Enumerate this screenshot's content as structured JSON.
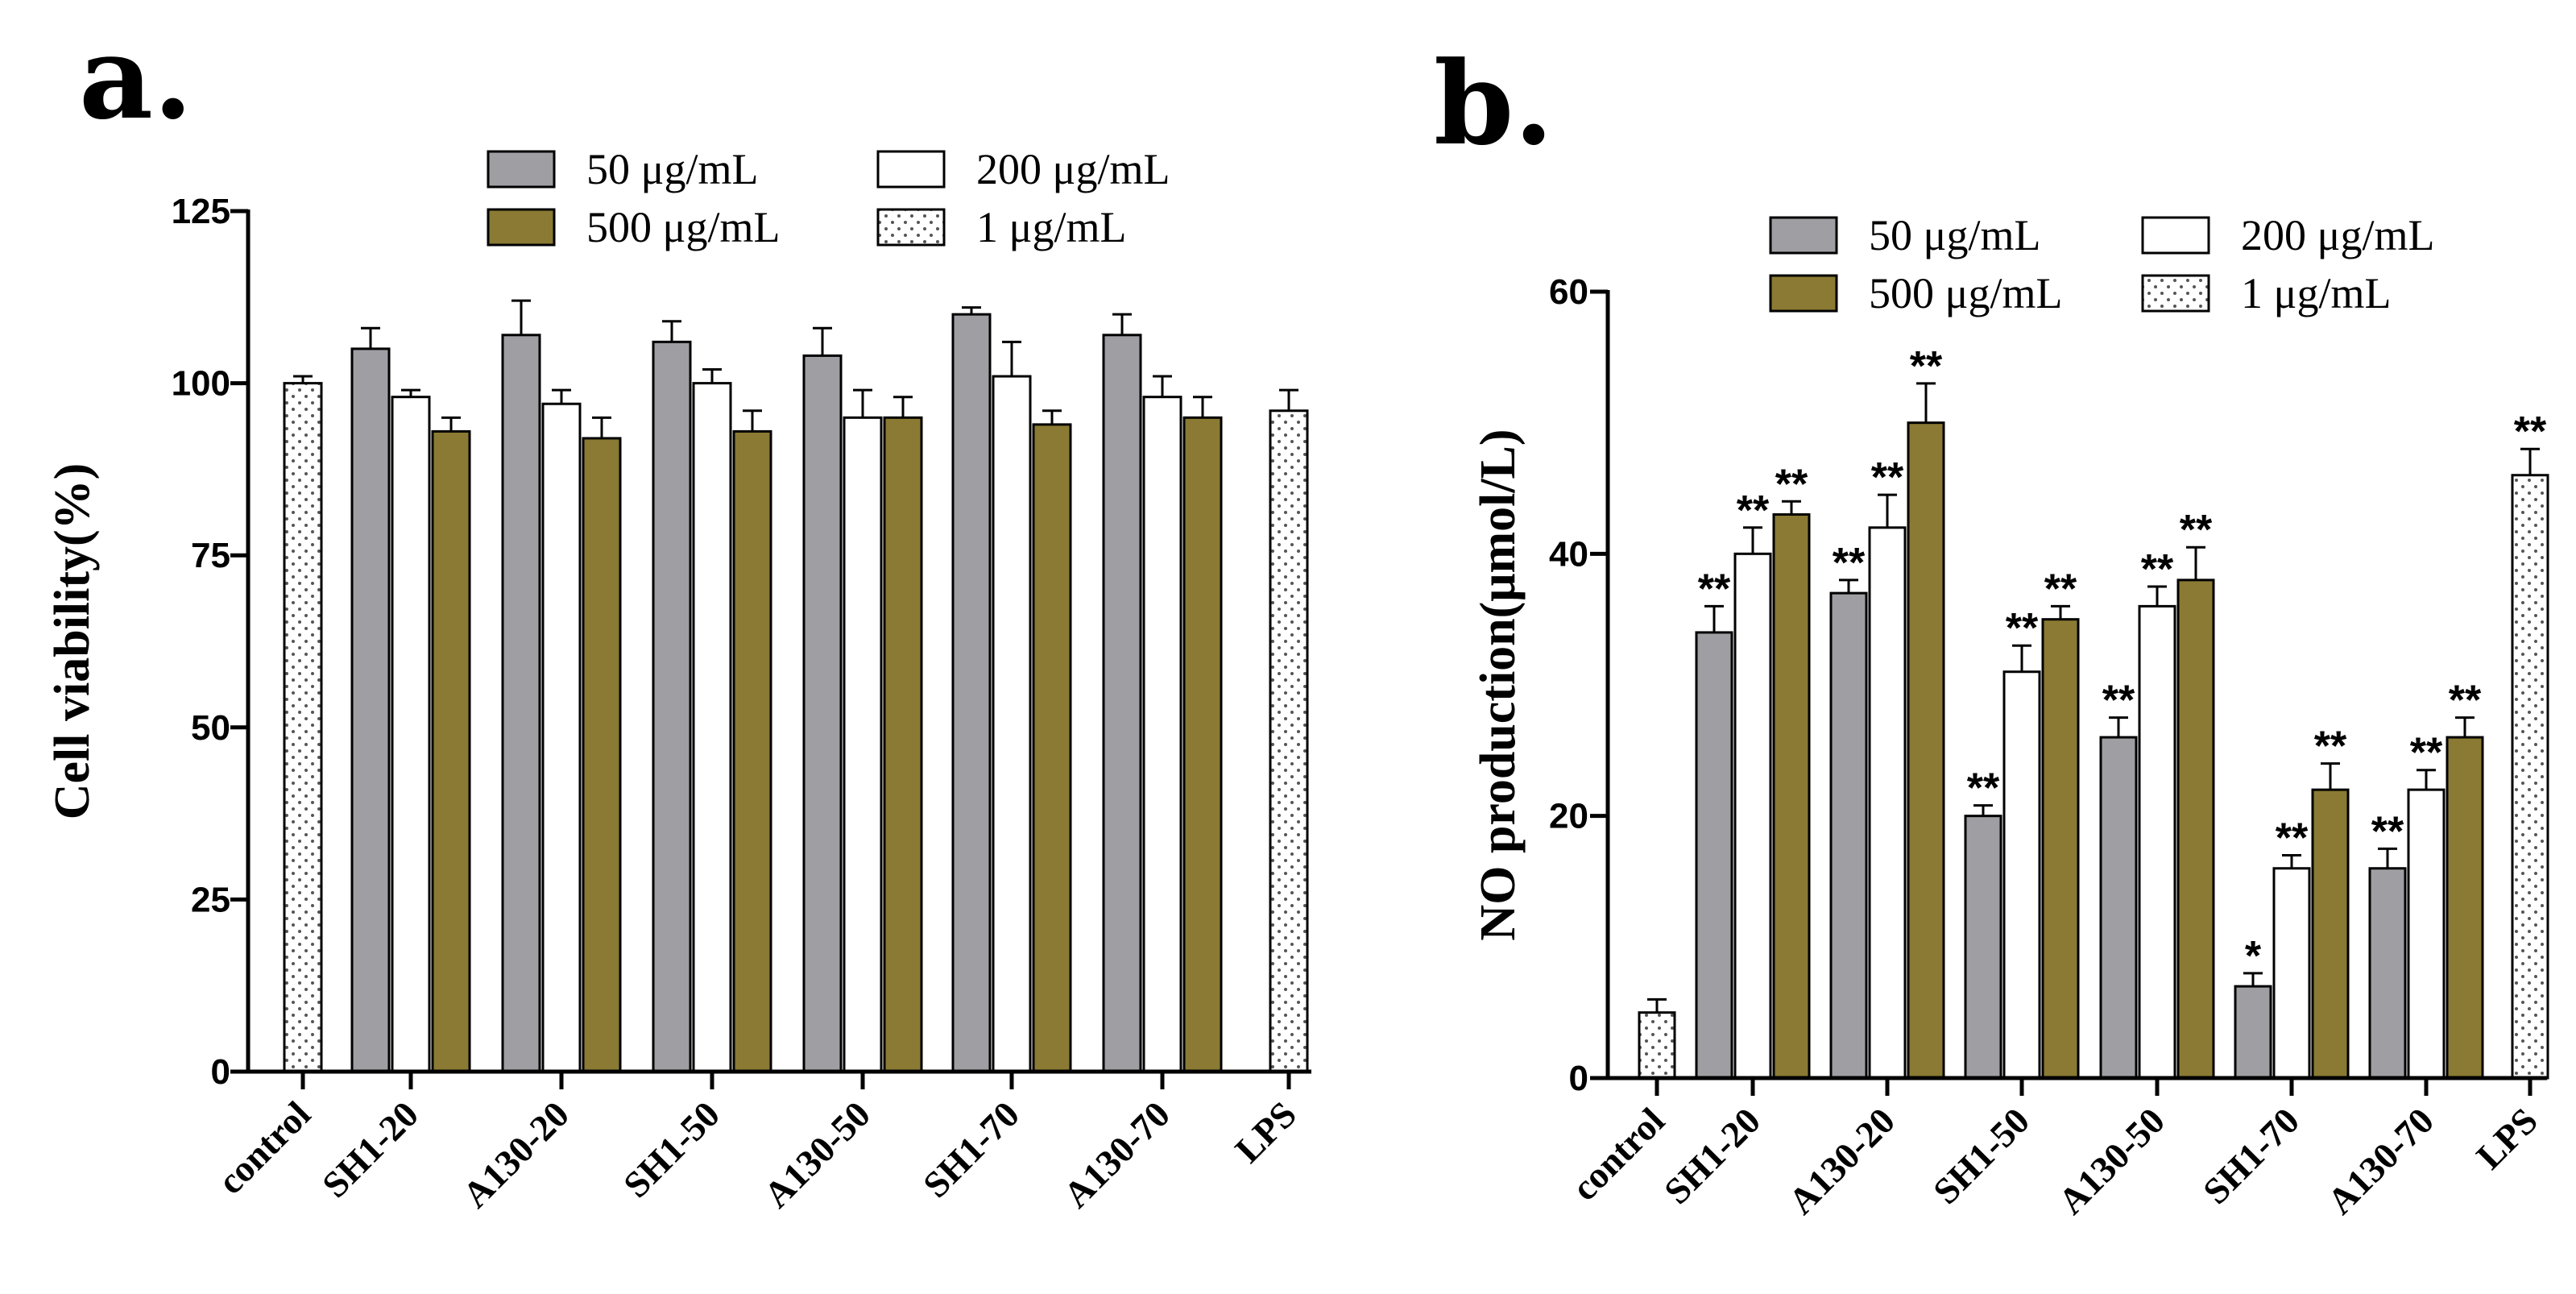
{
  "chart_data": [
    {
      "panel": "a.",
      "type": "bar",
      "ylabel": "Cell viability(%)",
      "xlabel": "",
      "ylim": [
        0,
        125
      ],
      "yticks": [
        0,
        25,
        50,
        75,
        100,
        125
      ],
      "legend_position": "top",
      "legend": [
        {
          "name": "50 μg/mL",
          "fill": "gray"
        },
        {
          "name": "200 μg/mL",
          "fill": "white"
        },
        {
          "name": "500 μg/mL",
          "fill": "olive"
        },
        {
          "name": "1 μg/mL",
          "fill": "dotted"
        }
      ],
      "groups": [
        {
          "category": "control",
          "bars": [
            {
              "series": "1 μg/mL",
              "value": 100,
              "err": 1
            }
          ]
        },
        {
          "category": "SH1-20",
          "bars": [
            {
              "series": "50 μg/mL",
              "value": 105,
              "err": 3
            },
            {
              "series": "200 μg/mL",
              "value": 98,
              "err": 1
            },
            {
              "series": "500 μg/mL",
              "value": 93,
              "err": 2
            }
          ]
        },
        {
          "category": "A130-20",
          "bars": [
            {
              "series": "50 μg/mL",
              "value": 107,
              "err": 5
            },
            {
              "series": "200 μg/mL",
              "value": 97,
              "err": 2
            },
            {
              "series": "500 μg/mL",
              "value": 92,
              "err": 3
            }
          ]
        },
        {
          "category": "SH1-50",
          "bars": [
            {
              "series": "50 μg/mL",
              "value": 106,
              "err": 3
            },
            {
              "series": "200 μg/mL",
              "value": 100,
              "err": 2
            },
            {
              "series": "500 μg/mL",
              "value": 93,
              "err": 3
            }
          ]
        },
        {
          "category": "A130-50",
          "bars": [
            {
              "series": "50 μg/mL",
              "value": 104,
              "err": 4
            },
            {
              "series": "200 μg/mL",
              "value": 95,
              "err": 4
            },
            {
              "series": "500 μg/mL",
              "value": 95,
              "err": 3
            }
          ]
        },
        {
          "category": "SH1-70",
          "bars": [
            {
              "series": "50 μg/mL",
              "value": 110,
              "err": 1
            },
            {
              "series": "200 μg/mL",
              "value": 101,
              "err": 5
            },
            {
              "series": "500 μg/mL",
              "value": 94,
              "err": 2
            }
          ]
        },
        {
          "category": "A130-70",
          "bars": [
            {
              "series": "50 μg/mL",
              "value": 107,
              "err": 3
            },
            {
              "series": "200 μg/mL",
              "value": 98,
              "err": 3
            },
            {
              "series": "500 μg/mL",
              "value": 95,
              "err": 3
            }
          ]
        },
        {
          "category": "LPS",
          "bars": [
            {
              "series": "1 μg/mL",
              "value": 96,
              "err": 3
            }
          ]
        }
      ]
    },
    {
      "panel": "b.",
      "type": "bar",
      "ylabel": "NO production(μmol/L)",
      "xlabel": "",
      "ylim": [
        0,
        60
      ],
      "yticks": [
        0,
        20,
        40,
        60
      ],
      "legend_position": "top",
      "legend": [
        {
          "name": "50 μg/mL",
          "fill": "gray"
        },
        {
          "name": "200 μg/mL",
          "fill": "white"
        },
        {
          "name": "500 μg/mL",
          "fill": "olive"
        },
        {
          "name": "1 μg/mL",
          "fill": "dotted"
        }
      ],
      "groups": [
        {
          "category": "control",
          "bars": [
            {
              "series": "1 μg/mL",
              "value": 5,
              "err": 1,
              "sig": ""
            }
          ]
        },
        {
          "category": "SH1-20",
          "bars": [
            {
              "series": "50 μg/mL",
              "value": 34,
              "err": 2,
              "sig": "**"
            },
            {
              "series": "200 μg/mL",
              "value": 40,
              "err": 2,
              "sig": "**"
            },
            {
              "series": "500 μg/mL",
              "value": 43,
              "err": 1,
              "sig": "**"
            }
          ]
        },
        {
          "category": "A130-20",
          "bars": [
            {
              "series": "50 μg/mL",
              "value": 37,
              "err": 1,
              "sig": "**"
            },
            {
              "series": "200 μg/mL",
              "value": 42,
              "err": 2.5,
              "sig": "**"
            },
            {
              "series": "500 μg/mL",
              "value": 50,
              "err": 3,
              "sig": "**"
            }
          ]
        },
        {
          "category": "SH1-50",
          "bars": [
            {
              "series": "50 μg/mL",
              "value": 20,
              "err": 0.8,
              "sig": "**"
            },
            {
              "series": "200 μg/mL",
              "value": 31,
              "err": 2,
              "sig": "**"
            },
            {
              "series": "500 μg/mL",
              "value": 35,
              "err": 1,
              "sig": "**"
            }
          ]
        },
        {
          "category": "A130-50",
          "bars": [
            {
              "series": "50 μg/mL",
              "value": 26,
              "err": 1.5,
              "sig": "**"
            },
            {
              "series": "200 μg/mL",
              "value": 36,
              "err": 1.5,
              "sig": "**"
            },
            {
              "series": "500 μg/mL",
              "value": 38,
              "err": 2.5,
              "sig": "**"
            }
          ]
        },
        {
          "category": "SH1-70",
          "bars": [
            {
              "series": "50 μg/mL",
              "value": 7,
              "err": 1,
              "sig": "*"
            },
            {
              "series": "200 μg/mL",
              "value": 16,
              "err": 1,
              "sig": "**"
            },
            {
              "series": "500 μg/mL",
              "value": 22,
              "err": 2,
              "sig": "**"
            }
          ]
        },
        {
          "category": "A130-70",
          "bars": [
            {
              "series": "50 μg/mL",
              "value": 16,
              "err": 1.5,
              "sig": "**"
            },
            {
              "series": "200 μg/mL",
              "value": 22,
              "err": 1.5,
              "sig": "**"
            },
            {
              "series": "500 μg/mL",
              "value": 26,
              "err": 1.5,
              "sig": "**"
            }
          ]
        },
        {
          "category": "LPS",
          "bars": [
            {
              "series": "1 μg/mL",
              "value": 46,
              "err": 2,
              "sig": "**"
            }
          ]
        }
      ]
    }
  ],
  "colors": {
    "gray": "#9e9ea3",
    "olive": "#8a7a33",
    "white": "#ffffff",
    "dot": "#555555"
  }
}
